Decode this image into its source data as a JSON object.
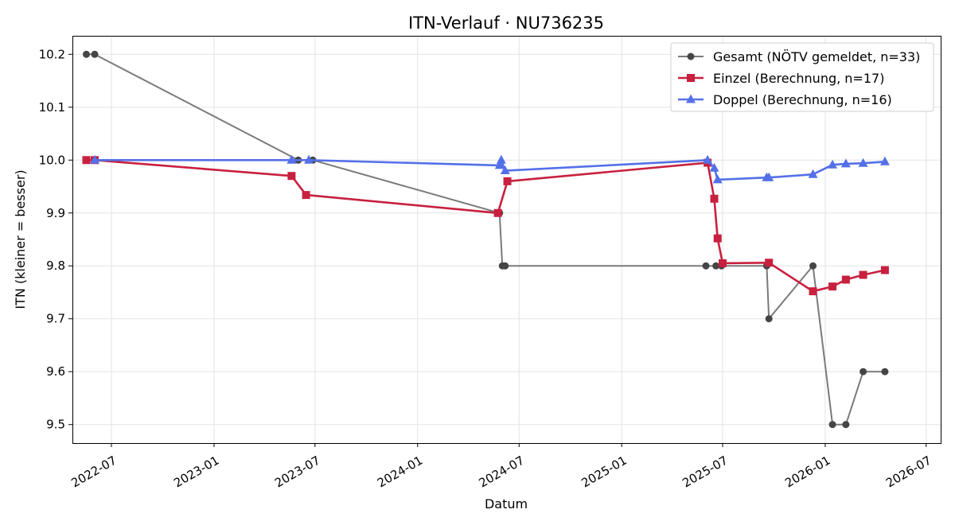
{
  "chart_data": {
    "type": "line",
    "title": "ITN-Verlauf · NU736235",
    "xlabel": "Datum",
    "ylabel": "ITN  (kleiner = besser)",
    "x_range": [
      "2022-04-22",
      "2026-07-27"
    ],
    "ylim": [
      9.465,
      10.235
    ],
    "x_ticks": [
      "2022-07",
      "2023-01",
      "2023-07",
      "2024-01",
      "2024-07",
      "2025-01",
      "2025-07",
      "2026-01",
      "2026-07"
    ],
    "y_ticks": [
      9.5,
      9.6,
      9.7,
      9.8,
      9.9,
      10.0,
      10.1,
      10.2
    ],
    "grid": true,
    "legend_position": "top-right",
    "series": [
      {
        "name": "Gesamt (NÖTV gemeldet, n=33)",
        "color": "#7a7a7a",
        "marker_color": "#454545",
        "marker": "circle",
        "points": [
          [
            "2022-05-17",
            10.2
          ],
          [
            "2022-06-01",
            10.2
          ],
          [
            "2023-06-01",
            10.0
          ],
          [
            "2023-06-27",
            10.0
          ],
          [
            "2024-05-27",
            9.9
          ],
          [
            "2024-06-01",
            9.8
          ],
          [
            "2024-06-06",
            9.8
          ],
          [
            "2025-06-01",
            9.8
          ],
          [
            "2025-06-19",
            9.8
          ],
          [
            "2025-06-29",
            9.8
          ],
          [
            "2025-09-18",
            9.8
          ],
          [
            "2025-09-22",
            9.7
          ],
          [
            "2025-12-10",
            9.8
          ],
          [
            "2026-01-14",
            9.5
          ],
          [
            "2026-02-07",
            9.5
          ],
          [
            "2026-03-10",
            9.6
          ],
          [
            "2026-04-18",
            9.6
          ]
        ]
      },
      {
        "name": "Einzel (Berechnung, n=17)",
        "color": "#c8203f",
        "marker": "square",
        "points": [
          [
            "2022-05-17",
            10.0
          ],
          [
            "2022-06-01",
            10.0
          ],
          [
            "2023-05-20",
            9.97
          ],
          [
            "2023-06-15",
            9.934
          ],
          [
            "2024-05-24",
            9.9
          ],
          [
            "2024-06-10",
            9.96
          ],
          [
            "2025-06-04",
            9.995
          ],
          [
            "2025-06-16",
            9.927
          ],
          [
            "2025-06-22",
            9.852
          ],
          [
            "2025-07-01",
            9.805
          ],
          [
            "2025-09-22",
            9.806
          ],
          [
            "2025-12-10",
            9.752
          ],
          [
            "2026-01-14",
            9.761
          ],
          [
            "2026-02-07",
            9.774
          ],
          [
            "2026-03-10",
            9.783
          ],
          [
            "2026-04-18",
            9.792
          ]
        ]
      },
      {
        "name": "Doppel (Berechnung, n=16)",
        "color": "#5470e8",
        "marker": "triangle",
        "points": [
          [
            "2022-06-01",
            10.0
          ],
          [
            "2023-05-20",
            10.0
          ],
          [
            "2023-06-20",
            10.0
          ],
          [
            "2024-05-27",
            9.99
          ],
          [
            "2024-05-30",
            10.0
          ],
          [
            "2024-06-06",
            9.98
          ],
          [
            "2025-06-04",
            10.0
          ],
          [
            "2025-06-16",
            9.985
          ],
          [
            "2025-06-22",
            9.963
          ],
          [
            "2025-09-18",
            9.967
          ],
          [
            "2025-09-22",
            9.967
          ],
          [
            "2025-12-10",
            9.973
          ],
          [
            "2026-01-14",
            9.991
          ],
          [
            "2026-02-07",
            9.993
          ],
          [
            "2026-03-10",
            9.994
          ],
          [
            "2026-04-18",
            9.997
          ]
        ]
      }
    ]
  }
}
